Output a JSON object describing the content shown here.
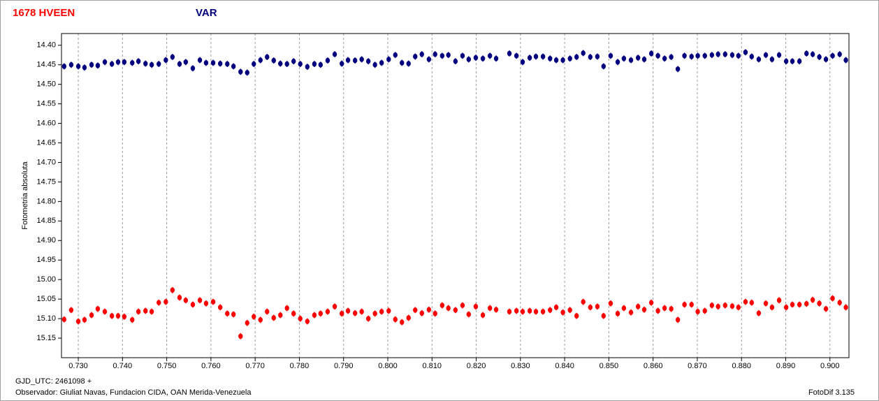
{
  "chart_data": {
    "type": "scatter",
    "y_label": "Fotometria absoluta",
    "footer_left": [
      "GJD_UTC: 2461098 +",
      "Observador: Giuliat Navas, Fundacion CIDA, OAN  Merida-Venezuela"
    ],
    "footer_right": "FotoDif 3.135",
    "xlim": [
      0.7262,
      0.9043
    ],
    "ylim": [
      14.37,
      15.2
    ],
    "y_inverted": true,
    "grid": "vertical",
    "xticks": [
      {
        "value": 0.73,
        "label": "0.730"
      },
      {
        "value": 0.74,
        "label": "0.740"
      },
      {
        "value": 0.75,
        "label": "0.750"
      },
      {
        "value": 0.76,
        "label": "0.760"
      },
      {
        "value": 0.77,
        "label": "0.770"
      },
      {
        "value": 0.78,
        "label": "0.780"
      },
      {
        "value": 0.79,
        "label": "0.790"
      },
      {
        "value": 0.8,
        "label": "0.800"
      },
      {
        "value": 0.81,
        "label": "0.810"
      },
      {
        "value": 0.82,
        "label": "0.820"
      },
      {
        "value": 0.83,
        "label": "0.830"
      },
      {
        "value": 0.84,
        "label": "0.840"
      },
      {
        "value": 0.85,
        "label": "0.850"
      },
      {
        "value": 0.86,
        "label": "0.860"
      },
      {
        "value": 0.87,
        "label": "0.870"
      },
      {
        "value": 0.88,
        "label": "0.880"
      },
      {
        "value": 0.89,
        "label": "0.890"
      },
      {
        "value": 0.9,
        "label": "0.900"
      }
    ],
    "yticks": [
      {
        "value": 14.4,
        "label": "14.40"
      },
      {
        "value": 14.45,
        "label": "14.45"
      },
      {
        "value": 14.5,
        "label": "14.50"
      },
      {
        "value": 14.55,
        "label": "14.55"
      },
      {
        "value": 14.6,
        "label": "14.60"
      },
      {
        "value": 14.65,
        "label": "14.65"
      },
      {
        "value": 14.7,
        "label": "14.70"
      },
      {
        "value": 14.75,
        "label": "14.75"
      },
      {
        "value": 14.8,
        "label": "14.80"
      },
      {
        "value": 14.85,
        "label": "14.85"
      },
      {
        "value": 14.9,
        "label": "14.90"
      },
      {
        "value": 14.95,
        "label": "14.95"
      },
      {
        "value": 15.0,
        "label": "15.00"
      },
      {
        "value": 15.05,
        "label": "15.05"
      },
      {
        "value": 15.1,
        "label": "15.10"
      },
      {
        "value": 15.15,
        "label": "15.15"
      }
    ],
    "x": [
      0.7268,
      0.7284,
      0.73,
      0.7314,
      0.733,
      0.7344,
      0.736,
      0.7376,
      0.739,
      0.7404,
      0.7422,
      0.7436,
      0.7452,
      0.7466,
      0.7482,
      0.7498,
      0.7513,
      0.7529,
      0.7543,
      0.7559,
      0.7575,
      0.7589,
      0.7605,
      0.7621,
      0.7637,
      0.7651,
      0.7667,
      0.7682,
      0.7697,
      0.7712,
      0.7727,
      0.7742,
      0.7757,
      0.7772,
      0.7787,
      0.7802,
      0.7818,
      0.7834,
      0.7848,
      0.7864,
      0.788,
      0.7896,
      0.791,
      0.7926,
      0.7941,
      0.7956,
      0.7971,
      0.7986,
      0.8002,
      0.8017,
      0.8032,
      0.8047,
      0.8062,
      0.8077,
      0.8093,
      0.8107,
      0.8123,
      0.8137,
      0.8153,
      0.8169,
      0.8183,
      0.8199,
      0.8215,
      0.8231,
      0.8245,
      0.8275,
      0.8291,
      0.8305,
      0.8321,
      0.8335,
      0.8351,
      0.8367,
      0.8381,
      0.8396,
      0.8412,
      0.8427,
      0.8442,
      0.8458,
      0.8474,
      0.8488,
      0.8504,
      0.852,
      0.8534,
      0.855,
      0.8566,
      0.858,
      0.8596,
      0.8611,
      0.8626,
      0.8641,
      0.8656,
      0.8671,
      0.8687,
      0.8701,
      0.8717,
      0.8733,
      0.8747,
      0.8763,
      0.8779,
      0.8793,
      0.8809,
      0.8823,
      0.8839,
      0.8855,
      0.8869,
      0.8885,
      0.8901,
      0.8915,
      0.8931,
      0.8947,
      0.8961,
      0.8976,
      0.8991,
      0.9006,
      0.9022,
      0.9036
    ],
    "series": [
      {
        "name": "1678 HVEEN",
        "color": "#ff0000",
        "error": 0.008,
        "values": [
          15.102,
          15.078,
          15.107,
          15.103,
          15.091,
          15.075,
          15.082,
          15.093,
          15.093,
          15.095,
          15.103,
          15.082,
          15.08,
          15.082,
          15.059,
          15.057,
          15.027,
          15.046,
          15.053,
          15.064,
          15.053,
          15.061,
          15.057,
          15.071,
          15.087,
          15.089,
          15.145,
          15.111,
          15.095,
          15.103,
          15.082,
          15.098,
          15.091,
          15.073,
          15.087,
          15.1,
          15.107,
          15.091,
          15.087,
          15.082,
          15.069,
          15.087,
          15.08,
          15.086,
          15.082,
          15.1,
          15.087,
          15.082,
          15.08,
          15.102,
          15.109,
          15.098,
          15.078,
          15.086,
          15.077,
          15.087,
          15.066,
          15.073,
          15.078,
          15.066,
          15.089,
          15.069,
          15.091,
          15.073,
          15.077,
          15.082,
          15.08,
          15.082,
          15.08,
          15.082,
          15.082,
          15.078,
          15.071,
          15.084,
          15.078,
          15.093,
          15.057,
          15.071,
          15.069,
          15.093,
          15.061,
          15.087,
          15.073,
          15.084,
          15.069,
          15.077,
          15.059,
          15.08,
          15.073,
          15.075,
          15.103,
          15.064,
          15.064,
          15.082,
          15.08,
          15.066,
          15.069,
          15.066,
          15.068,
          15.071,
          15.057,
          15.059,
          15.086,
          15.061,
          15.071,
          15.053,
          15.071,
          15.064,
          15.064,
          15.062,
          15.052,
          15.061,
          15.075,
          15.048,
          15.059,
          15.071
        ]
      },
      {
        "name": "VAR",
        "color": "#00007f",
        "error": 0.008,
        "values": [
          14.454,
          14.45,
          14.454,
          14.457,
          14.45,
          14.452,
          14.443,
          14.448,
          14.443,
          14.443,
          14.445,
          14.441,
          14.447,
          14.45,
          14.448,
          14.438,
          14.43,
          14.448,
          14.443,
          14.459,
          14.438,
          14.445,
          14.445,
          14.447,
          14.448,
          14.454,
          14.468,
          14.47,
          14.448,
          14.438,
          14.43,
          14.439,
          14.447,
          14.448,
          14.441,
          14.448,
          14.455,
          14.448,
          14.45,
          14.439,
          14.423,
          14.447,
          14.438,
          14.439,
          14.436,
          14.441,
          14.45,
          14.445,
          14.436,
          14.425,
          14.445,
          14.447,
          14.429,
          14.423,
          14.436,
          14.423,
          14.427,
          14.425,
          14.441,
          14.427,
          14.436,
          14.432,
          14.434,
          14.427,
          14.434,
          14.421,
          14.427,
          14.443,
          14.432,
          14.429,
          14.429,
          14.434,
          14.438,
          14.438,
          14.434,
          14.43,
          14.42,
          14.43,
          14.429,
          14.454,
          14.427,
          14.443,
          14.434,
          14.438,
          14.432,
          14.436,
          14.421,
          14.427,
          14.434,
          14.43,
          14.461,
          14.427,
          14.429,
          14.427,
          14.427,
          14.425,
          14.423,
          14.423,
          14.425,
          14.427,
          14.418,
          14.429,
          14.436,
          14.425,
          14.436,
          14.425,
          14.441,
          14.441,
          14.441,
          14.421,
          14.423,
          14.43,
          14.436,
          14.427,
          14.423,
          14.438
        ]
      }
    ]
  }
}
